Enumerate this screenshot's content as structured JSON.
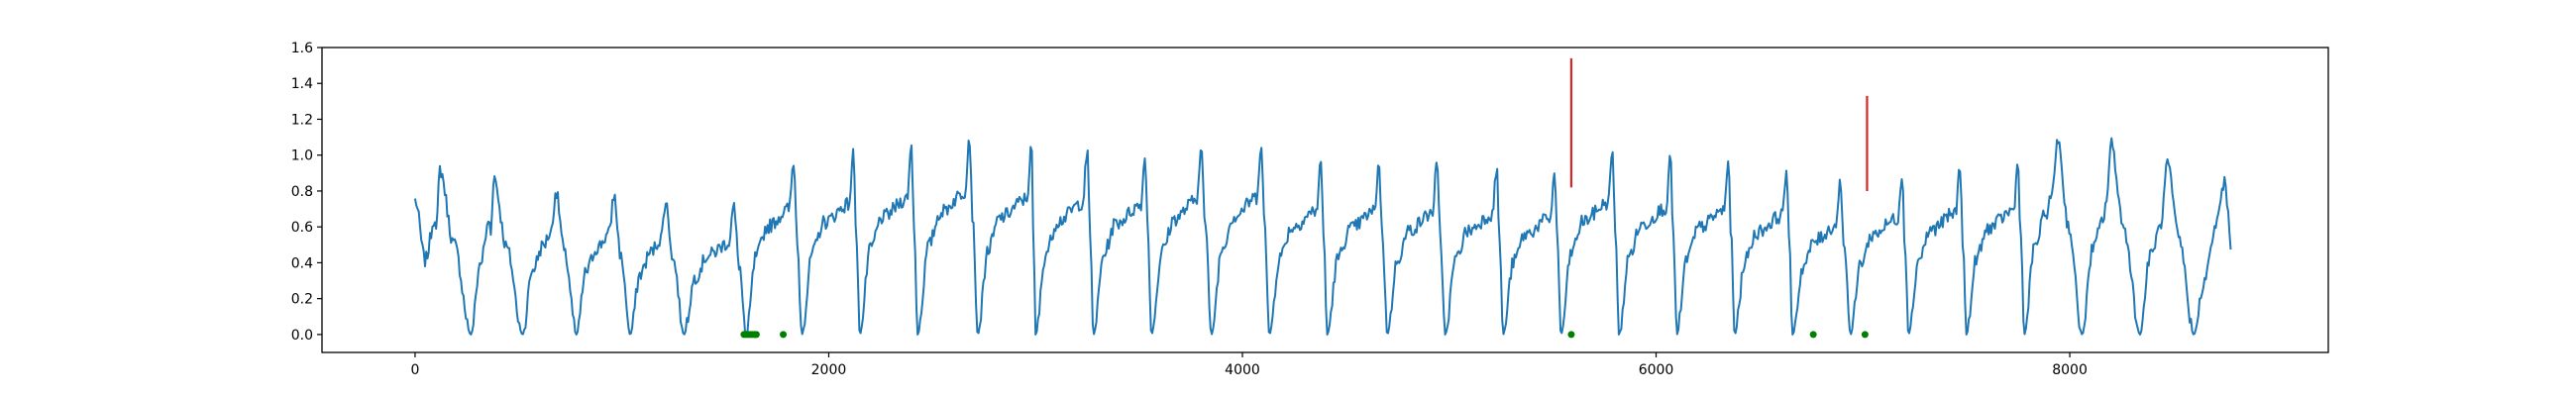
{
  "chart_data": {
    "type": "line",
    "title": "",
    "xlabel": "",
    "ylabel": "",
    "xlim": [
      -450,
      9250
    ],
    "ylim": [
      -0.1,
      1.6
    ],
    "grid": false,
    "legend": "none",
    "x_ticks": [
      0,
      2000,
      4000,
      6000,
      8000
    ],
    "x_tick_labels": [
      "0",
      "2000",
      "4000",
      "6000",
      "8000"
    ],
    "y_ticks": [
      0.0,
      0.2,
      0.4,
      0.6,
      0.8,
      1.0,
      1.2,
      1.4,
      1.6
    ],
    "y_tick_labels": [
      "0.0",
      "0.2",
      "0.4",
      "0.6",
      "0.8",
      "1.0",
      "1.2",
      "1.4",
      "1.6"
    ],
    "series": [
      {
        "kind": "line",
        "color": "#1f77b4",
        "x_start": 0,
        "x_end": 8780,
        "cycles": [
          {
            "trough_x": 270,
            "trough_y": 0.0,
            "peak_x": 120,
            "peak_y": 0.92
          },
          {
            "trough_x": 520,
            "trough_y": 0.0,
            "peak_x": 380,
            "peak_y": 0.88
          },
          {
            "trough_x": 780,
            "trough_y": 0.0,
            "peak_x": 680,
            "peak_y": 0.8
          },
          {
            "trough_x": 1040,
            "trough_y": 0.0,
            "peak_x": 960,
            "peak_y": 0.78
          },
          {
            "trough_x": 1300,
            "trough_y": 0.0,
            "peak_x": 1210,
            "peak_y": 0.74
          },
          {
            "trough_x": 1600,
            "trough_y": -0.01,
            "peak_x": 1540,
            "peak_y": 0.71
          },
          {
            "trough_x": 1870,
            "trough_y": 0.0,
            "peak_x": 1830,
            "peak_y": 0.97
          },
          {
            "trough_x": 2150,
            "trough_y": 0.0,
            "peak_x": 2120,
            "peak_y": 1.01
          },
          {
            "trough_x": 2430,
            "trough_y": 0.0,
            "peak_x": 2400,
            "peak_y": 1.05
          },
          {
            "trough_x": 2720,
            "trough_y": 0.0,
            "peak_x": 2680,
            "peak_y": 1.1
          },
          {
            "trough_x": 3000,
            "trough_y": 0.0,
            "peak_x": 2980,
            "peak_y": 1.05
          },
          {
            "trough_x": 3280,
            "trough_y": 0.0,
            "peak_x": 3250,
            "peak_y": 1.02
          },
          {
            "trough_x": 3560,
            "trough_y": 0.0,
            "peak_x": 3530,
            "peak_y": 1.0
          },
          {
            "trough_x": 3850,
            "trough_y": 0.0,
            "peak_x": 3800,
            "peak_y": 1.04
          },
          {
            "trough_x": 4130,
            "trough_y": 0.0,
            "peak_x": 4090,
            "peak_y": 1.06
          },
          {
            "trough_x": 4410,
            "trough_y": 0.0,
            "peak_x": 4380,
            "peak_y": 0.96
          },
          {
            "trough_x": 4700,
            "trough_y": 0.0,
            "peak_x": 4660,
            "peak_y": 0.95
          },
          {
            "trough_x": 4980,
            "trough_y": 0.0,
            "peak_x": 4940,
            "peak_y": 0.94
          },
          {
            "trough_x": 5260,
            "trough_y": 0.0,
            "peak_x": 5230,
            "peak_y": 0.93
          },
          {
            "trough_x": 5540,
            "trough_y": 0.0,
            "peak_x": 5510,
            "peak_y": 0.9
          },
          {
            "trough_x": 5820,
            "trough_y": 0.0,
            "peak_x": 5790,
            "peak_y": 1.02
          },
          {
            "trough_x": 6100,
            "trough_y": 0.0,
            "peak_x": 6070,
            "peak_y": 0.98
          },
          {
            "trough_x": 6380,
            "trough_y": 0.0,
            "peak_x": 6350,
            "peak_y": 0.96
          },
          {
            "trough_x": 6660,
            "trough_y": 0.0,
            "peak_x": 6630,
            "peak_y": 0.92
          },
          {
            "trough_x": 6940,
            "trough_y": 0.0,
            "peak_x": 6890,
            "peak_y": 0.84
          },
          {
            "trough_x": 7220,
            "trough_y": 0.0,
            "peak_x": 7190,
            "peak_y": 0.9
          },
          {
            "trough_x": 7500,
            "trough_y": 0.0,
            "peak_x": 7470,
            "peak_y": 0.94
          },
          {
            "trough_x": 7780,
            "trough_y": 0.0,
            "peak_x": 7750,
            "peak_y": 0.96
          },
          {
            "trough_x": 8060,
            "trough_y": 0.0,
            "peak_x": 7940,
            "peak_y": 1.1
          },
          {
            "trough_x": 8340,
            "trough_y": 0.0,
            "peak_x": 8200,
            "peak_y": 1.06
          },
          {
            "trough_x": 8600,
            "trough_y": 0.0,
            "peak_x": 8470,
            "peak_y": 0.96
          }
        ],
        "end_y": 0.5,
        "noise": 0.04
      }
    ],
    "vertical_lines": [
      {
        "x": 5590,
        "y_from": 0.82,
        "y_to": 1.54,
        "color": "#d62728"
      },
      {
        "x": 7020,
        "y_from": 0.8,
        "y_to": 1.33,
        "color": "#d62728"
      }
    ],
    "points": {
      "color": "#008000",
      "x": [
        1590,
        1600,
        1610,
        1620,
        1630,
        1640,
        1650,
        1780,
        5590,
        6760,
        7010
      ],
      "y": [
        0.0,
        0.0,
        0.0,
        0.0,
        0.0,
        0.0,
        0.0,
        0.0,
        0.0,
        0.0,
        0.0
      ]
    }
  }
}
